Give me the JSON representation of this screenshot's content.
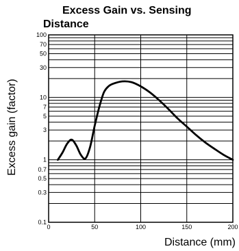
{
  "chart_data": {
    "type": "line",
    "title_lines": [
      "Excess Gain vs. Sensing",
      "Distance"
    ],
    "xlabel": "Distance (mm)",
    "ylabel": "Excess gain (factor)",
    "x_scale": "linear",
    "y_scale": "log",
    "xlim": [
      0,
      200
    ],
    "ylim": [
      0.1,
      100
    ],
    "x_ticks": [
      0,
      50,
      100,
      150,
      200
    ],
    "x_tick_labels": [
      "0",
      "50",
      "100",
      "150",
      "200"
    ],
    "y_ticks": [
      0.1,
      0.3,
      0.5,
      0.7,
      1,
      3,
      5,
      7,
      10,
      30,
      50,
      70,
      100
    ],
    "y_tick_labels": [
      "0.1",
      "0.3",
      "0.5",
      "0.7",
      "1",
      "3",
      "5",
      "7",
      "10",
      "30",
      "50",
      "70",
      "100"
    ],
    "y_gridlines": [
      0.1,
      0.2,
      0.3,
      0.4,
      0.5,
      0.6,
      0.7,
      0.8,
      0.9,
      1,
      2,
      3,
      4,
      5,
      6,
      7,
      8,
      9,
      10,
      20,
      30,
      40,
      50,
      60,
      70,
      80,
      90,
      100
    ],
    "grid": true,
    "series": [
      {
        "x": [
          10,
          15,
          20,
          25,
          30,
          35,
          40,
          45,
          50,
          55,
          60,
          65,
          70,
          80,
          90,
          100,
          110,
          120,
          130,
          140,
          150,
          160,
          170,
          180,
          190,
          200
        ],
        "y": [
          1.0,
          1.3,
          1.8,
          2.1,
          1.7,
          1.2,
          1.05,
          1.6,
          3.5,
          7.0,
          12,
          15,
          16.5,
          18,
          17.5,
          15,
          12,
          9,
          6.5,
          4.6,
          3.4,
          2.5,
          1.9,
          1.5,
          1.2,
          1.0
        ],
        "color": "#000000"
      }
    ]
  }
}
